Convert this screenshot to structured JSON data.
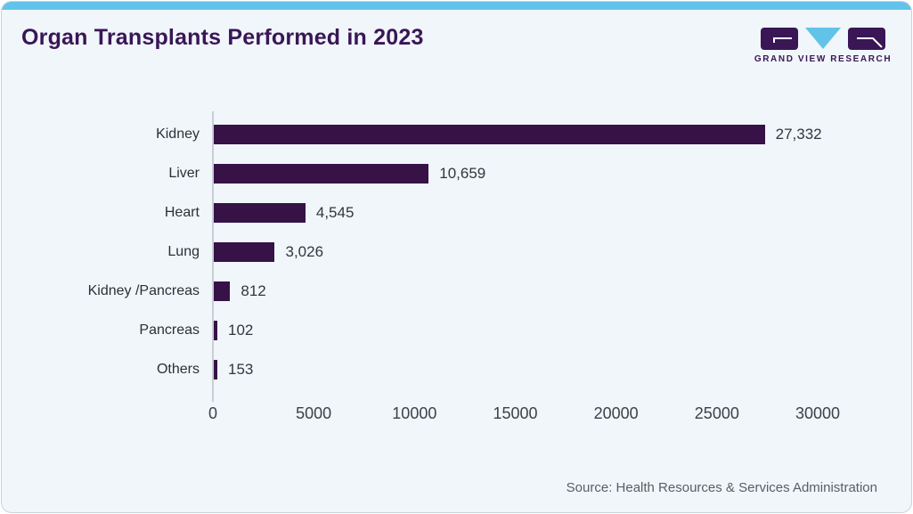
{
  "header": {
    "title": "Organ Transplants Performed in 2023",
    "logo_text": "GRAND VIEW RESEARCH"
  },
  "chart_data": {
    "type": "bar",
    "orientation": "horizontal",
    "title": "Organ Transplants Performed in 2023",
    "categories": [
      "Kidney",
      "Liver",
      "Heart",
      "Lung",
      "Kidney /Pancreas",
      "Pancreas",
      "Others"
    ],
    "values": [
      27332,
      10659,
      4545,
      3026,
      812,
      102,
      153
    ],
    "value_labels": [
      "27,332",
      "10,659",
      "4,545",
      "3,026",
      "812",
      "102",
      "153"
    ],
    "xticks": [
      0,
      5000,
      10000,
      15000,
      20000,
      25000,
      30000
    ],
    "xtick_labels": [
      "0",
      "5000",
      "10000",
      "15000",
      "20000",
      "25000",
      "30000"
    ],
    "xlim": [
      0,
      30000
    ],
    "xlabel": "",
    "ylabel": "",
    "grid": false,
    "legend": false,
    "bar_color": "#361247"
  },
  "footer": {
    "source": "Source: Health Resources & Services Administration"
  },
  "colors": {
    "accent_strip": "#62c3e8",
    "brand_purple": "#3a1656",
    "bar_purple": "#361247",
    "background": "#f0f6fa",
    "axis_line": "#c9ced4",
    "text_dark": "#2d3036",
    "text_gray": "#585e64"
  }
}
